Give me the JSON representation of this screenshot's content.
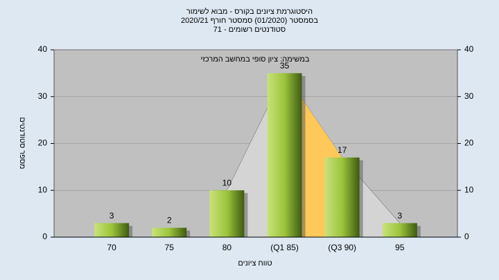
{
  "chart_data": {
    "type": "bar",
    "title": [
      "היסטוגרמת ציונים בקורס - מבוא לשימור",
      "בסמסטר  (01/2020)  סמסטר חורף  2020/21",
      "סטודנטים רשומים - 71"
    ],
    "subtitle": "במשימה: ציון סופי במחשב המרכזי",
    "x_label": "טווח ציונים",
    "y_label": "מספר סטודנטים",
    "categories": [
      "70",
      "75",
      "80",
      "(Q1 85)",
      "(Q3 90)",
      "95"
    ],
    "values": [
      3,
      2,
      10,
      35,
      17,
      3
    ],
    "color": "#9cc43c",
    "area_color": "#d4d4d4",
    "iqr_color": "#ffc85a",
    "ylim": [
      0,
      40
    ],
    "yticks": [
      0,
      10,
      20,
      30,
      40
    ],
    "y2lim": [
      0,
      40
    ],
    "y2ticks": [
      0,
      10,
      20,
      30,
      40
    ],
    "grid": true
  }
}
